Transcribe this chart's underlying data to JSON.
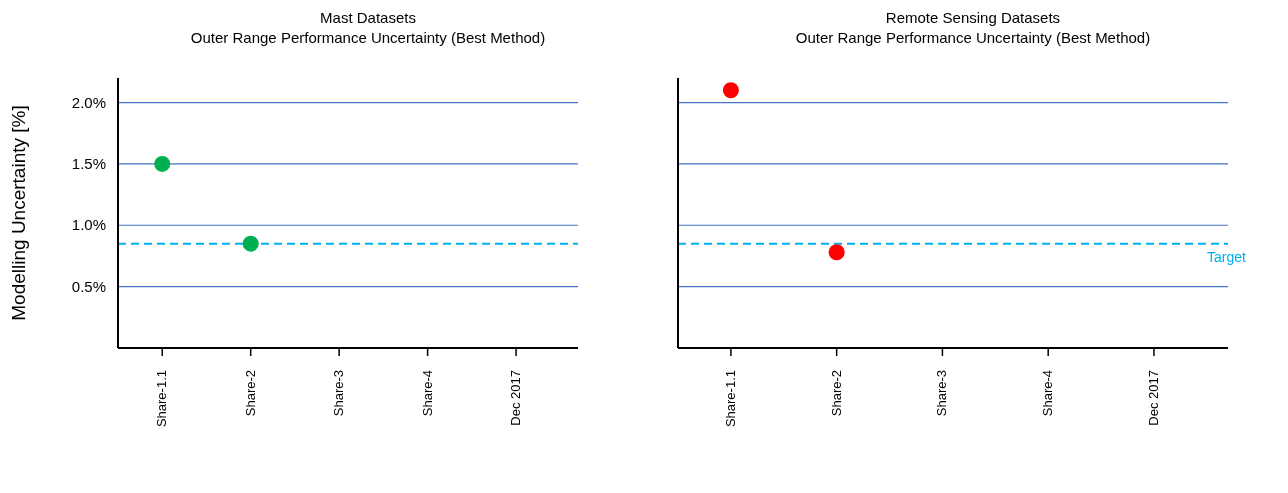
{
  "chart_data": [
    {
      "type": "scatter",
      "title": "Mast Datasets",
      "subtitle": "Outer Range Performance Uncertainty (Best Method)",
      "ylabel": "Modelling Uncertainty [%]",
      "categories": [
        "Share-1.1",
        "Share-2",
        "Share-3",
        "Share-4",
        "Dec 2017"
      ],
      "series": [
        {
          "color": "#00b050",
          "values": [
            1.5,
            0.85,
            null,
            null,
            null
          ]
        }
      ],
      "ylim": [
        0,
        2.2
      ],
      "yticks": [
        {
          "value": 0.5,
          "label": "0.5%"
        },
        {
          "value": 1.0,
          "label": "1.0%"
        },
        {
          "value": 1.5,
          "label": "1.5%"
        },
        {
          "value": 2.0,
          "label": "2.0%"
        }
      ],
      "grid": "y",
      "marker": "circle",
      "ref_lines": [
        {
          "axis": "y",
          "value": 0.85,
          "label": null,
          "color": "#00b0f0",
          "line_style": "dashed"
        }
      ]
    },
    {
      "type": "scatter",
      "title": "Remote Sensing Datasets",
      "subtitle": "Outer Range Performance Uncertainty (Best Method)",
      "categories": [
        "Share-1.1",
        "Share-2",
        "Share-3",
        "Share-4",
        "Dec 2017"
      ],
      "series": [
        {
          "color": "#ff0000",
          "values": [
            2.1,
            0.78,
            null,
            null,
            null
          ]
        }
      ],
      "ylim": [
        0,
        2.2
      ],
      "yticks": [
        {
          "value": 0.5,
          "label": null
        },
        {
          "value": 1.0,
          "label": null
        },
        {
          "value": 1.5,
          "label": null
        },
        {
          "value": 2.0,
          "label": null
        }
      ],
      "grid": "y",
      "marker": "circle",
      "tick_labels": "x",
      "ref_lines": [
        {
          "axis": "y",
          "value": 0.85,
          "label": "Target",
          "color": "#00b0f0",
          "line_style": "dashed"
        }
      ]
    }
  ]
}
